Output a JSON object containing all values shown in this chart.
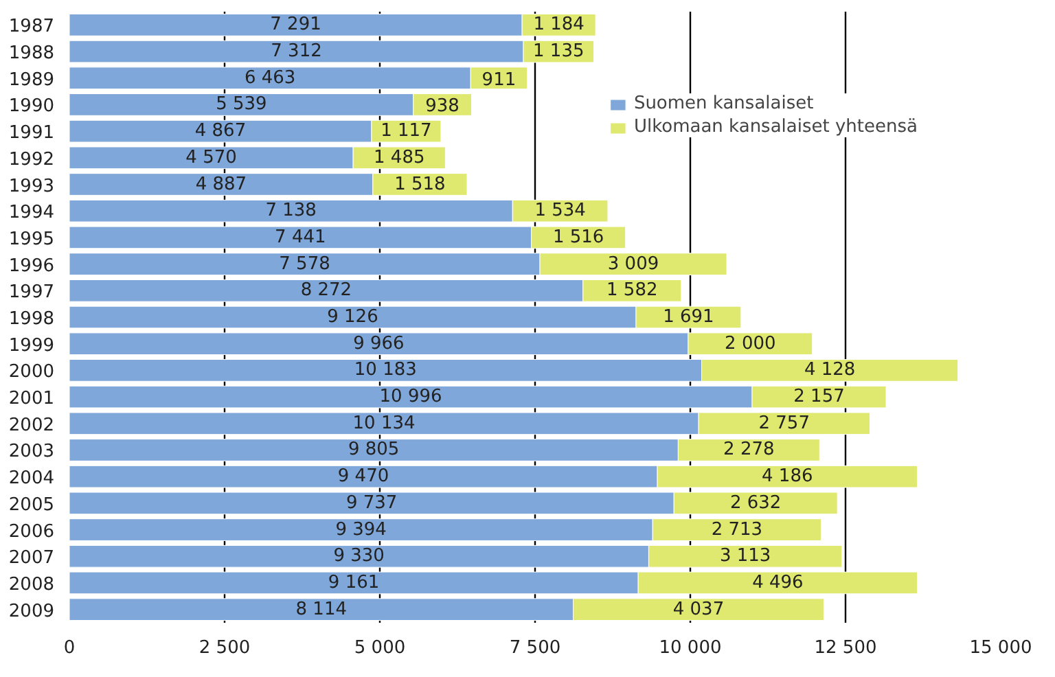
{
  "chart_data": {
    "type": "bar",
    "orientation": "horizontal",
    "stacked": true,
    "legend": "top right",
    "grid": "x",
    "categories": [
      "1987",
      "1988",
      "1989",
      "1990",
      "1991",
      "1992",
      "1993",
      "1994",
      "1995",
      "1996",
      "1997",
      "1998",
      "1999",
      "2000",
      "2001",
      "2002",
      "2003",
      "2004",
      "2005",
      "2006",
      "2007",
      "2008",
      "2009"
    ],
    "xlim": [
      0,
      15000
    ],
    "xticks": [
      0,
      {
        "value": 2500,
        "label": "2 500"
      },
      {
        "value": 5000,
        "label": "5 000"
      },
      {
        "value": 7500,
        "label": "7 500"
      },
      {
        "value": 10000,
        "label": "10 000"
      },
      {
        "value": 12500,
        "label": "12 500"
      },
      {
        "value": 15000,
        "label": "15 000"
      }
    ],
    "series": [
      {
        "name": "Suomen kansalaiset",
        "color": "#7fa7d9",
        "values": [
          7291,
          7312,
          6463,
          5539,
          4867,
          4570,
          4887,
          7138,
          7441,
          7578,
          8272,
          9126,
          9966,
          10183,
          10996,
          10134,
          9805,
          9470,
          9737,
          9394,
          9330,
          9161,
          8114
        ],
        "value_labels": [
          "7 291",
          "7 312",
          "6 463",
          "5 539",
          "4 867",
          "4 570",
          "4 887",
          "7 138",
          "7 441",
          "7 578",
          "8 272",
          "9 126",
          "9 966",
          "10 183",
          "10 996",
          "10 134",
          "9 805",
          "9 470",
          "9 737",
          "9 394",
          "9 330",
          "9 161",
          "8 114"
        ]
      },
      {
        "name": "Ulkomaan kansalaiset yhteensä",
        "color": "#dfe86f",
        "values": [
          1184,
          1135,
          911,
          938,
          1117,
          1485,
          1518,
          1534,
          1516,
          3009,
          1582,
          1691,
          2000,
          4128,
          2157,
          2757,
          2278,
          4186,
          2632,
          2713,
          3113,
          4496,
          4037
        ],
        "value_labels": [
          "1 184",
          "1 135",
          "911",
          "938",
          "1 117",
          "1 485",
          "1 518",
          "1 534",
          "1 516",
          "3 009",
          "1 582",
          "1 691",
          "2 000",
          "4 128",
          "2 157",
          "2 757",
          "2 278",
          "4 186",
          "2 632",
          "2 713",
          "3 113",
          "4 496",
          "4 037"
        ]
      }
    ]
  }
}
